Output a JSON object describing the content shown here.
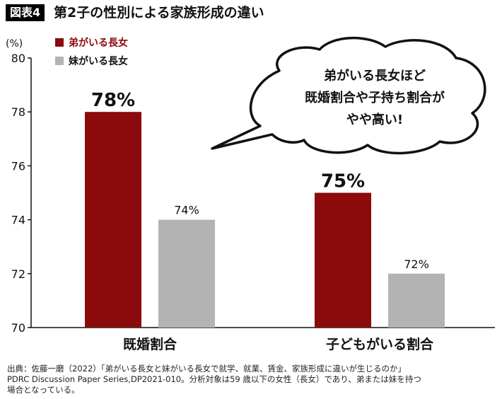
{
  "header": {
    "figure_tag": "図表4",
    "title": "第2子の性別による家族形成の違い"
  },
  "chart_data": {
    "type": "bar",
    "ylabel": "(%)",
    "ylim": [
      70,
      80
    ],
    "yticks": [
      70,
      72,
      74,
      76,
      78,
      80
    ],
    "categories": [
      "既婚割合",
      "子どもがいる割合"
    ],
    "series": [
      {
        "name": "弟がいる長女",
        "color": "#8b0a0c",
        "values": [
          78,
          75
        ],
        "labels": [
          "78%",
          "75%"
        ]
      },
      {
        "name": "妹がいる長女",
        "color": "#b3b3b3",
        "values": [
          74,
          72
        ],
        "labels": [
          "74%",
          "72%"
        ]
      }
    ],
    "legend_position": "top-left",
    "annotation": [
      "弟がいる長女ほど",
      "既婚割合や子持ち割合が",
      "やや高い!"
    ]
  },
  "footer": {
    "source_lines": [
      "出典：佐藤一磨（2022）「弟がいる長女と妹がいる長女で就学、就業、賃金、家族形成に違いが生じるのか」",
      "PDRC Discussion Paper Series,DP2021-010。分析対象は59 歳以下の女性（長女）であり、弟または妹を持つ",
      "場合となっている。"
    ]
  }
}
